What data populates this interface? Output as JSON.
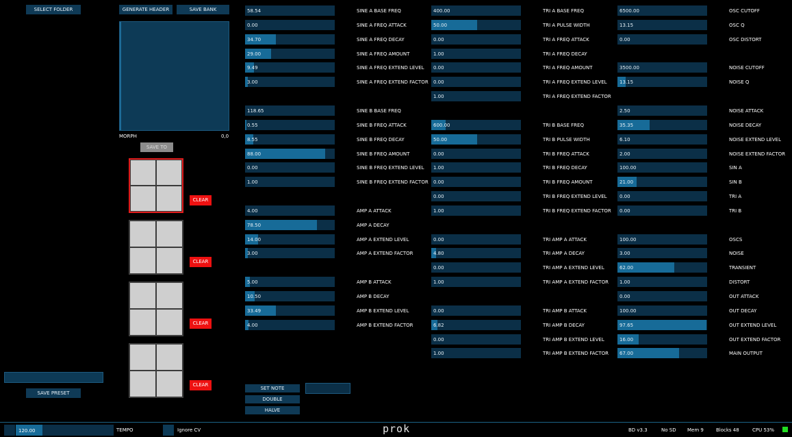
{
  "buttons": {
    "select_folder": "SELECT FOLDER",
    "generate_header": "GENERATE HEADER",
    "save_bank": "SAVE BANK",
    "save_to": "SAVE TO",
    "save_preset": "SAVE PRESET",
    "clear": "CLEAR",
    "set_note": "SET NOTE",
    "double": "DOUBLE",
    "halve": "HALVE"
  },
  "morph": {
    "label": "MORPH",
    "value": "0,0"
  },
  "preset_name": "",
  "note_value": "",
  "colors": {
    "track": "#0b2f47",
    "fill": "#176b98",
    "accent_red": "#ee1111",
    "status_led": "#22dd22"
  },
  "columns": [
    [
      {
        "row": 0,
        "value": "58.54",
        "fill": 0.0,
        "label": "SINE A BASE FREQ"
      },
      {
        "row": 1,
        "value": "0.00",
        "fill": 0.0,
        "label": "SINE A FREQ ATTACK"
      },
      {
        "row": 2,
        "value": "34.70",
        "fill": 0.41,
        "label": "SINE A FREQ DECAY"
      },
      {
        "row": 3,
        "value": "29.00",
        "fill": 0.35,
        "label": "SINE A FREQ AMOUNT"
      },
      {
        "row": 4,
        "value": "9.49",
        "fill": 0.12,
        "label": "SINE A FREQ EXTEND LEVEL"
      },
      {
        "row": 5,
        "value": "3.00",
        "fill": 0.04,
        "label": "SINE A FREQ EXTEND FACTOR"
      },
      {
        "row": 7,
        "value": "118.65",
        "fill": 0.0,
        "label": "SINE B BASE FREQ"
      },
      {
        "row": 8,
        "value": "0.55",
        "fill": 0.02,
        "label": "SINE B FREQ ATTACK"
      },
      {
        "row": 9,
        "value": "8.55",
        "fill": 0.11,
        "label": "SINE B FREQ DECAY"
      },
      {
        "row": 10,
        "value": "88.00",
        "fill": 1.07,
        "label": "SINE B FREQ AMOUNT"
      },
      {
        "row": 11,
        "value": "0.00",
        "fill": 0.0,
        "label": "SINE B FREQ EXTEND LEVEL"
      },
      {
        "row": 12,
        "value": "1.00",
        "fill": 0.0,
        "label": "SINE B FREQ EXTEND FACTOR"
      },
      {
        "row": 14,
        "value": "4.00",
        "fill": 0.0,
        "label": "AMP A ATTACK"
      },
      {
        "row": 15,
        "value": "78.50",
        "fill": 0.96,
        "label": "AMP A DECAY"
      },
      {
        "row": 16,
        "value": "14.00",
        "fill": 0.17,
        "label": "AMP A EXTEND LEVEL"
      },
      {
        "row": 17,
        "value": "3.00",
        "fill": 0.04,
        "label": "AMP A EXTEND FACTOR"
      },
      {
        "row": 19,
        "value": "5.00",
        "fill": 0.06,
        "label": "AMP B ATTACK"
      },
      {
        "row": 20,
        "value": "10.50",
        "fill": 0.13,
        "label": "AMP B DECAY"
      },
      {
        "row": 21,
        "value": "33.49",
        "fill": 0.41,
        "label": "AMP B EXTEND LEVEL"
      },
      {
        "row": 22,
        "value": "4.00",
        "fill": 0.05,
        "label": "AMP B EXTEND FACTOR"
      }
    ],
    [
      {
        "row": 0,
        "value": "400.00",
        "fill": 0.0,
        "label": "TRI A BASE FREQ"
      },
      {
        "row": 1,
        "value": "50.00",
        "fill": 0.61,
        "label": "TRI A PULSE WIDTH"
      },
      {
        "row": 2,
        "value": "0.00",
        "fill": 0.0,
        "label": "TRI A FREQ ATTACK"
      },
      {
        "row": 3,
        "value": "1.00",
        "fill": 0.0,
        "label": "TRI A FREQ DECAY"
      },
      {
        "row": 4,
        "value": "0.00",
        "fill": 0.0,
        "label": "TRI A FREQ AMOUNT"
      },
      {
        "row": 5,
        "value": "0.00",
        "fill": 0.0,
        "label": "TRI A FREQ EXTEND LEVEL"
      },
      {
        "row": 6,
        "value": "1.00",
        "fill": 0.0,
        "label": "TRI A FREQ EXTEND FACTOR"
      },
      {
        "row": 8,
        "value": "600.00",
        "fill": 0.19,
        "label": "TRI B BASE FREQ"
      },
      {
        "row": 9,
        "value": "50.00",
        "fill": 0.61,
        "label": "TRI B PULSE WIDTH"
      },
      {
        "row": 10,
        "value": "0.00",
        "fill": 0.0,
        "label": "TRI B FREQ ATTACK"
      },
      {
        "row": 11,
        "value": "1.00",
        "fill": 0.0,
        "label": "TRI B FREQ DECAY"
      },
      {
        "row": 12,
        "value": "0.00",
        "fill": 0.0,
        "label": "TRI B FREQ AMOUNT"
      },
      {
        "row": 13,
        "value": "0.00",
        "fill": 0.0,
        "label": "TRI B FREQ EXTEND LEVEL"
      },
      {
        "row": 14,
        "value": "1.00",
        "fill": 0.0,
        "label": "TRI B FREQ EXTEND FACTOR"
      },
      {
        "row": 16,
        "value": "0.00",
        "fill": 0.0,
        "label": "TRI AMP A ATTACK"
      },
      {
        "row": 17,
        "value": "4.80",
        "fill": 0.06,
        "label": "TRI AMP A DECAY"
      },
      {
        "row": 18,
        "value": "0.00",
        "fill": 0.0,
        "label": "TRI AMP A EXTEND LEVEL"
      },
      {
        "row": 19,
        "value": "1.00",
        "fill": 0.0,
        "label": "TRI AMP A EXTEND FACTOR"
      },
      {
        "row": 21,
        "value": "0.00",
        "fill": 0.0,
        "label": "TRI AMP B ATTACK"
      },
      {
        "row": 22,
        "value": "6.82",
        "fill": 0.08,
        "label": "TRI AMP B DECAY"
      },
      {
        "row": 23,
        "value": "0.00",
        "fill": 0.0,
        "label": "TRI AMP B EXTEND LEVEL"
      },
      {
        "row": 24,
        "value": "1.00",
        "fill": 0.0,
        "label": "TRI AMP B EXTEND FACTOR"
      }
    ],
    [
      {
        "row": 0,
        "value": "6500.00",
        "fill": 0.0,
        "label": "OSC CUTOFF"
      },
      {
        "row": 1,
        "value": "13.15",
        "fill": 0.0,
        "label": "OSC Q"
      },
      {
        "row": 2,
        "value": "0.00",
        "fill": 0.0,
        "label": "OSC DISTORT"
      },
      {
        "row": 4,
        "value": "3500.00",
        "fill": 0.0,
        "label": "NOISE CUTOFF"
      },
      {
        "row": 5,
        "value": "13.15",
        "fill": 0.11,
        "label": "NOISE Q"
      },
      {
        "row": 7,
        "value": "2.50",
        "fill": 0.0,
        "label": "NOISE ATTACK"
      },
      {
        "row": 8,
        "value": "35.35",
        "fill": 0.43,
        "label": "NOISE DECAY"
      },
      {
        "row": 9,
        "value": "6.10",
        "fill": 0.0,
        "label": "NOISE EXTEND LEVEL"
      },
      {
        "row": 10,
        "value": "2.00",
        "fill": 0.0,
        "label": "NOISE EXTEND FACTOR"
      },
      {
        "row": 11,
        "value": "100.00",
        "fill": 0.0,
        "label": "SIN A"
      },
      {
        "row": 12,
        "value": "21.00",
        "fill": 0.26,
        "label": "SIN B"
      },
      {
        "row": 13,
        "value": "0.00",
        "fill": 0.0,
        "label": "TRI A"
      },
      {
        "row": 14,
        "value": "0.00",
        "fill": 0.0,
        "label": "TRI B"
      },
      {
        "row": 16,
        "value": "100.00",
        "fill": 0.0,
        "label": "OSCS"
      },
      {
        "row": 17,
        "value": "3.00",
        "fill": 0.0,
        "label": "NOISE"
      },
      {
        "row": 18,
        "value": "62.00",
        "fill": 0.76,
        "label": "TRANSIENT"
      },
      {
        "row": 19,
        "value": "1.00",
        "fill": 0.0,
        "label": "DISTORT"
      },
      {
        "row": 20,
        "value": "0.00",
        "fill": 0.0,
        "label": "OUT ATTACK"
      },
      {
        "row": 21,
        "value": "100.00",
        "fill": 0.0,
        "label": "OUT DECAY"
      },
      {
        "row": 22,
        "value": "97.65",
        "fill": 1.19,
        "label": "OUT EXTEND LEVEL"
      },
      {
        "row": 23,
        "value": "16.00",
        "fill": 0.28,
        "label": "OUT EXTEND FACTOR"
      },
      {
        "row": 24,
        "value": "67.00",
        "fill": 0.82,
        "label": "MAIN OUTPUT"
      }
    ]
  ],
  "status": {
    "tempo_value": "120.00",
    "tempo_fill": 0.27,
    "tempo_label": "TEMPO",
    "ignore_cv_label": "Ignore CV",
    "logo": "prok",
    "version": "BD v3.3",
    "sd": "No SD",
    "mem": "Mem 9",
    "blocks": "Blocks 48",
    "cpu": "CPU 53%"
  }
}
